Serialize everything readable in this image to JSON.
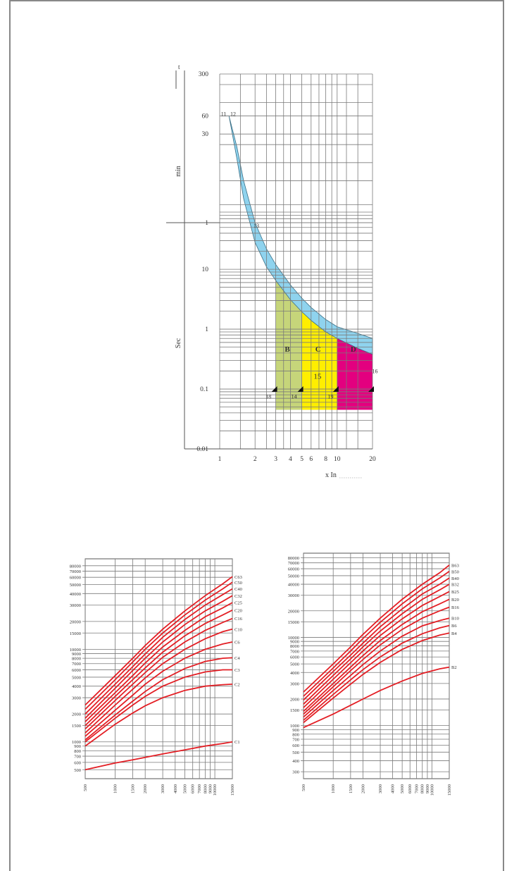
{
  "chart_data": [
    {
      "type": "area",
      "title": "",
      "xlabel": "x In",
      "ylabel_upper": "min",
      "ylabel_lower": "Sec",
      "t_marker": "t",
      "x_ticks": [
        "1",
        "2",
        "3",
        "4",
        "5",
        "6",
        "8",
        "10",
        "20"
      ],
      "x_tick_values": [
        1,
        2,
        3,
        4,
        5,
        6,
        8,
        10,
        20
      ],
      "y_ticks": [
        {
          "label": "300",
          "min": 300
        },
        {
          "label": "60",
          "min": 60
        },
        {
          "label": "30",
          "min": 30
        },
        {
          "label": "1",
          "min": 1
        },
        {
          "label": "10",
          "sec": 10
        },
        {
          "label": "1",
          "sec": 1
        },
        {
          "label": "0.1",
          "sec": 0.1
        },
        {
          "label": "0.01",
          "sec": 0.01
        }
      ],
      "thermal_band": {
        "name": "",
        "color": "#8fd3ee",
        "x": [
          1.13,
          1.2,
          1.4,
          1.6,
          2,
          2.5,
          3,
          4,
          5,
          6,
          8,
          10,
          15,
          20
        ],
        "upper_sec": [
          3600,
          3600,
          1100,
          300,
          60,
          22,
          12,
          5.5,
          3.3,
          2.3,
          1.45,
          1.1,
          0.85,
          0.7
        ],
        "lower_sec": [
          3600,
          3600,
          700,
          150,
          28,
          11,
          6.5,
          3.1,
          1.95,
          1.4,
          0.9,
          0.7,
          0.48,
          0.38
        ]
      },
      "zones": [
        {
          "name": "B",
          "color": "#c6d57a",
          "x_start": 3,
          "x_end": 5,
          "t_min_sec": 0.045
        },
        {
          "name": "C",
          "color": "#ffee00",
          "x_start": 5,
          "x_end": 10,
          "t_min_sec": 0.045
        },
        {
          "name": "D",
          "color": "#e3007f",
          "x_start": 10,
          "x_end": 20,
          "t_min_sec": 0.045
        }
      ],
      "annotations": [
        {
          "text": "11",
          "x": 1.08,
          "min": 65
        },
        {
          "text": "12",
          "x": 1.3,
          "min": 65
        },
        {
          "text": "13",
          "x": 2.05,
          "min": 0.9
        },
        {
          "text": "15",
          "x": 6.8,
          "sec": 0.16
        },
        {
          "text": "16",
          "x": 21,
          "sec": 0.2
        },
        {
          "text": "18",
          "x": 2.6,
          "sec": 0.075
        },
        {
          "text": "14",
          "x": 4.3,
          "sec": 0.075
        },
        {
          "text": "19",
          "x": 8.8,
          "sec": 0.075
        }
      ]
    },
    {
      "type": "line",
      "title": "",
      "x_ticks": [
        "500",
        "1000",
        "1500",
        "2000",
        "3000",
        "4000",
        "5000",
        "6000",
        "7000",
        "8000",
        "9000",
        "10000",
        "15000"
      ],
      "y_ticks": [
        "500",
        "600",
        "700",
        "800",
        "900",
        "1000",
        "1500",
        "2000",
        "3000",
        "4000",
        "5000",
        "6000",
        "7000",
        "8000",
        "9000",
        "10000",
        "15000",
        "20000",
        "30000",
        "40000",
        "50000",
        "60000",
        "70000",
        "80000"
      ],
      "xlim": [
        500,
        15000
      ],
      "ylim": [
        400,
        95000
      ],
      "x": [
        500,
        1000,
        1500,
        2000,
        3000,
        5000,
        8000,
        12000,
        15000
      ],
      "series": [
        {
          "name": "C63",
          "values": [
            2500,
            5200,
            8000,
            11000,
            16500,
            26000,
            38000,
            51000,
            61000
          ]
        },
        {
          "name": "C50",
          "values": [
            2250,
            4700,
            7300,
            10000,
            15000,
            23500,
            34000,
            45000,
            53000
          ]
        },
        {
          "name": "C40",
          "values": [
            2000,
            4200,
            6500,
            8900,
            13500,
            21000,
            30000,
            39000,
            45000
          ]
        },
        {
          "name": "C32",
          "values": [
            1800,
            3800,
            5900,
            8000,
            12000,
            18500,
            26000,
            33000,
            38000
          ]
        },
        {
          "name": "C25",
          "values": [
            1650,
            3400,
            5200,
            7100,
            10600,
            16000,
            22500,
            28000,
            32000
          ]
        },
        {
          "name": "C20",
          "values": [
            1500,
            3100,
            4700,
            6300,
            9300,
            14000,
            19000,
            23500,
            26500
          ]
        },
        {
          "name": "C16",
          "values": [
            1380,
            2800,
            4200,
            5600,
            8200,
            12000,
            16000,
            19500,
            21500
          ]
        },
        {
          "name": "C10",
          "values": [
            1250,
            2500,
            3700,
            4900,
            7000,
            10000,
            13000,
            15500,
            16500
          ]
        },
        {
          "name": "C6",
          "values": [
            1150,
            2200,
            3200,
            4200,
            5800,
            8000,
            10000,
            11400,
            12000
          ]
        },
        {
          "name": "C4",
          "values": [
            1050,
            1950,
            2750,
            3500,
            4700,
            6200,
            7400,
            8000,
            8100
          ]
        },
        {
          "name": "C3",
          "values": [
            1000,
            1800,
            2500,
            3100,
            4000,
            5000,
            5700,
            6000,
            6000
          ]
        },
        {
          "name": "C2",
          "values": [
            900,
            1550,
            2050,
            2450,
            3000,
            3600,
            4000,
            4150,
            4200
          ]
        },
        {
          "name": "C1",
          "values": [
            500,
            590,
            640,
            680,
            740,
            820,
            900,
            960,
            1000
          ]
        }
      ]
    },
    {
      "type": "line",
      "title": "",
      "x_ticks": [
        "500",
        "1000",
        "1500",
        "2000",
        "3000",
        "4000",
        "5000",
        "6000",
        "7000",
        "8000",
        "9000",
        "10000",
        "15000"
      ],
      "y_ticks": [
        "300",
        "400",
        "500",
        "600",
        "700",
        "800",
        "900",
        "1000",
        "1500",
        "2000",
        "3000",
        "4000",
        "5000",
        "6000",
        "7000",
        "8000",
        "9000",
        "10000",
        "15000",
        "20000",
        "30000",
        "40000",
        "50000",
        "60000",
        "70000",
        "80000"
      ],
      "xlim": [
        500,
        15000
      ],
      "ylim": [
        250,
        90000
      ],
      "x": [
        500,
        1000,
        1500,
        2000,
        3000,
        5000,
        8000,
        12000,
        15000
      ],
      "series": [
        {
          "name": "B63",
          "values": [
            2400,
            5000,
            7800,
            10800,
            16500,
            27000,
            40000,
            54000,
            66000
          ]
        },
        {
          "name": "B50",
          "values": [
            2150,
            4500,
            7000,
            9700,
            14800,
            24000,
            35500,
            47000,
            56000
          ]
        },
        {
          "name": "B40",
          "values": [
            1950,
            4100,
            6300,
            8600,
            13200,
            21000,
            31000,
            40000,
            47000
          ]
        },
        {
          "name": "B32",
          "values": [
            1750,
            3700,
            5700,
            7800,
            11800,
            18500,
            27000,
            34500,
            40000
          ]
        },
        {
          "name": "B25",
          "values": [
            1600,
            3350,
            5150,
            7000,
            10500,
            16200,
            23000,
            29000,
            33000
          ]
        },
        {
          "name": "B20",
          "values": [
            1450,
            3000,
            4600,
            6200,
            9200,
            14000,
            19500,
            24000,
            27000
          ]
        },
        {
          "name": "B16",
          "values": [
            1350,
            2750,
            4200,
            5600,
            8200,
            12300,
            16500,
            20000,
            22000
          ]
        },
        {
          "name": "B10",
          "values": [
            1250,
            2500,
            3700,
            4900,
            7000,
            10300,
            13500,
            15500,
            16500
          ]
        },
        {
          "name": "B6",
          "values": [
            1150,
            2250,
            3300,
            4300,
            6000,
            8600,
            11000,
            12800,
            13600
          ]
        },
        {
          "name": "B4",
          "values": [
            1080,
            2050,
            2950,
            3800,
            5200,
            7300,
            9200,
            10600,
            11200
          ]
        },
        {
          "name": "B2",
          "values": [
            950,
            1350,
            1700,
            2000,
            2500,
            3200,
            3900,
            4400,
            4600
          ]
        }
      ]
    }
  ]
}
